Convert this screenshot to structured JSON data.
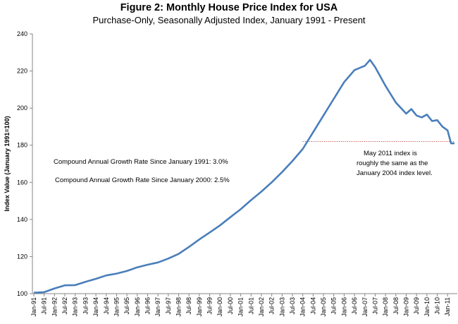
{
  "chart_data": {
    "type": "line",
    "title": "Figure 2: Monthly House Price Index for USA",
    "subtitle": "Purchase-Only, Seasonally Adjusted Index, January 1991 - Present",
    "xlabel": "",
    "ylabel": "Index Value (January 1991=100)",
    "ylim": [
      100,
      240
    ],
    "yticks": [
      100,
      120,
      140,
      160,
      180,
      200,
      220,
      240
    ],
    "x_tick_labels": [
      "Jan-91",
      "Jul-91",
      "Jan-92",
      "Jul-92",
      "Jan-93",
      "Jul-93",
      "Jan-94",
      "Jul-94",
      "Jan-95",
      "Jul-95",
      "Jan-96",
      "Jul-96",
      "Jan-97",
      "Jul-97",
      "Jan-98",
      "Jul-98",
      "Jan-99",
      "Jul-99",
      "Jan-00",
      "Jul-00",
      "Jan-01",
      "Jul-01",
      "Jan-02",
      "Jul-02",
      "Jan-03",
      "Jul-03",
      "Jan-04",
      "Jul-04",
      "Jan-05",
      "Jul-05",
      "Jan-06",
      "Jul-06",
      "Jan-07",
      "Jul-07",
      "Jan-08",
      "Jul-08",
      "Jan-09",
      "Jul-09",
      "Jan-10",
      "Jul-10",
      "Jan-11"
    ],
    "series_color": "#4a7ebb",
    "reference_line_color": "#c0504d",
    "grid": false,
    "legend": "none",
    "series": [
      {
        "x": [
          "Jan-91",
          "Jul-91",
          "Jan-92",
          "Jul-92",
          "Jan-93",
          "Jul-93",
          "Jan-94",
          "Jul-94",
          "Jan-95",
          "Jul-95",
          "Jan-96",
          "Jul-96",
          "Jan-97",
          "Jul-97",
          "Jan-98",
          "Jul-98",
          "Jan-99",
          "Jul-99",
          "Jan-00",
          "Jul-00",
          "Jan-01",
          "Jul-01",
          "Jan-02",
          "Jul-02",
          "Jan-03",
          "Jul-03",
          "Jan-04",
          "Jul-04",
          "Jan-05",
          "Jul-05",
          "Jan-06",
          "Jul-06",
          "Jan-07",
          "Apr-07",
          "Jul-07",
          "Jan-08",
          "Jul-08",
          "Jan-09",
          "Apr-09",
          "Jul-09",
          "Oct-09",
          "Jan-10",
          "Apr-10",
          "Jul-10",
          "Oct-10",
          "Jan-11",
          "Mar-11",
          "May-11"
        ],
        "values": [
          100.5,
          100.8,
          102.8,
          104.5,
          104.6,
          106.4,
          108.0,
          109.8,
          110.8,
          112.2,
          114.2,
          115.6,
          116.8,
          118.9,
          121.4,
          125.2,
          129.2,
          133.0,
          136.8,
          141.2,
          145.5,
          150.4,
          155.0,
          160.0,
          165.5,
          171.5,
          178.0,
          187.0,
          196.0,
          205.0,
          214.0,
          220.5,
          222.8,
          226.0,
          222.0,
          212.0,
          203.0,
          197.0,
          199.5,
          196.0,
          195.0,
          196.5,
          193.0,
          193.5,
          190.0,
          188.0,
          181.0,
          181.0
        ]
      }
    ],
    "reference_line": {
      "from": "Jan-04",
      "to": "May-11",
      "value": 182.0
    },
    "annotations": {
      "cagr_1991": "Compound Annual Growth Rate Since January 1991:  3.0%",
      "cagr_2000": "Compound Annual Growth Rate Since January 2000:  2.5%",
      "note_line1": "May 2011 index is",
      "note_line2": "roughly the same as the",
      "note_line3": "January 2004 index level."
    }
  }
}
